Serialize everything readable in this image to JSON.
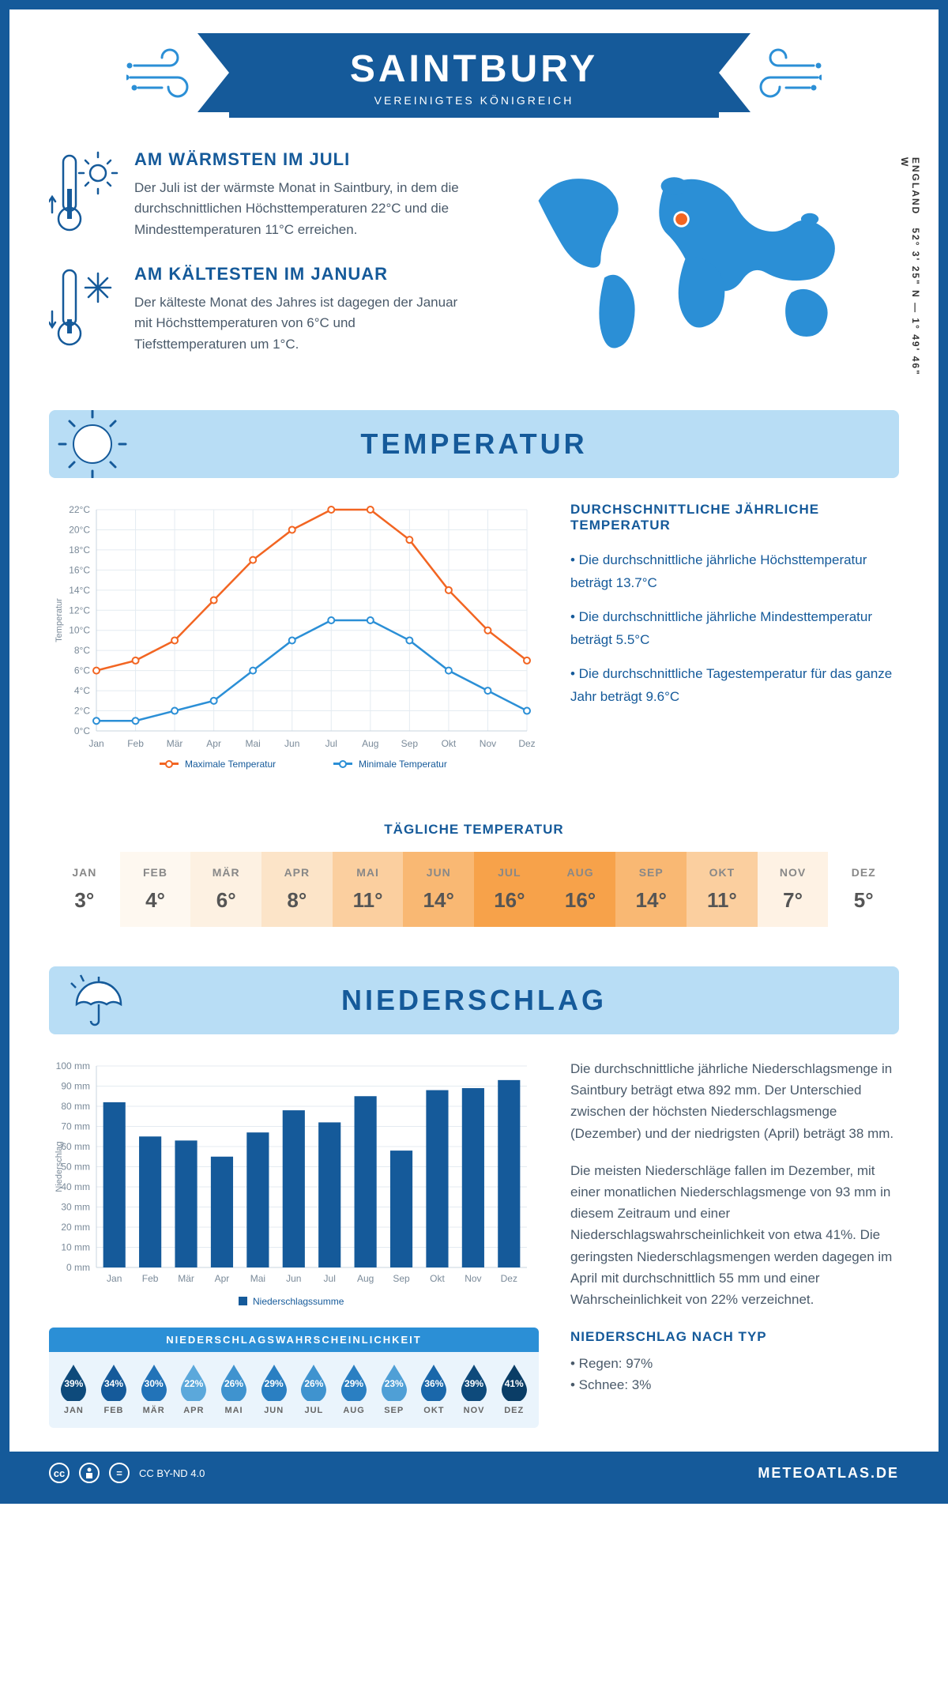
{
  "header": {
    "title": "SAINTBURY",
    "subtitle": "VEREINIGTES KÖNIGREICH"
  },
  "coords": "52° 3' 25\" N — 1° 49' 46\" W",
  "region": "ENGLAND",
  "map_marker": {
    "cx_pct": 47,
    "cy_pct": 34
  },
  "warmest": {
    "title": "AM WÄRMSTEN IM JULI",
    "text": "Der Juli ist der wärmste Monat in Saintbury, in dem die durchschnittlichen Höchsttemperaturen 22°C und die Mindesttemperaturen 11°C erreichen."
  },
  "coldest": {
    "title": "AM KÄLTESTEN IM JANUAR",
    "text": "Der kälteste Monat des Jahres ist dagegen der Januar mit Höchsttemperaturen von 6°C und Tiefsttemperaturen um 1°C."
  },
  "sections": {
    "temperature": "TEMPERATUR",
    "precipitation": "NIEDERSCHLAG"
  },
  "months": [
    "Jan",
    "Feb",
    "Mär",
    "Apr",
    "Mai",
    "Jun",
    "Jul",
    "Aug",
    "Sep",
    "Okt",
    "Nov",
    "Dez"
  ],
  "months_upper": [
    "JAN",
    "FEB",
    "MÄR",
    "APR",
    "MAI",
    "JUN",
    "JUL",
    "AUG",
    "SEP",
    "OKT",
    "NOV",
    "DEZ"
  ],
  "temp_chart": {
    "type": "line",
    "y_label": "Temperatur",
    "y_min": 0,
    "y_max": 22,
    "y_step": 2,
    "y_suffix": "°C",
    "max_series": {
      "label": "Maximale Temperatur",
      "color": "#f26522",
      "values": [
        6,
        7,
        9,
        13,
        17,
        20,
        22,
        22,
        19,
        14,
        10,
        7
      ]
    },
    "min_series": {
      "label": "Minimale Temperatur",
      "color": "#2b8fd6",
      "values": [
        1,
        1,
        2,
        3,
        6,
        9,
        11,
        11,
        9,
        6,
        4,
        2
      ]
    },
    "grid_color": "#e4ebf1",
    "axis_color": "#c8d4df",
    "marker_radius": 4
  },
  "avg_temp": {
    "title": "DURCHSCHNITTLICHE JÄHRLICHE TEMPERATUR",
    "b1": "• Die durchschnittliche jährliche Höchsttemperatur beträgt 13.7°C",
    "b2": "• Die durchschnittliche jährliche Mindesttemperatur beträgt 5.5°C",
    "b3": "• Die durchschnittliche Tagestemperatur für das ganze Jahr beträgt 9.6°C"
  },
  "daily_temp": {
    "title": "TÄGLICHE TEMPERATUR",
    "values": [
      3,
      4,
      6,
      8,
      11,
      14,
      16,
      16,
      14,
      11,
      7,
      5
    ],
    "colors": [
      "#ffffff",
      "#fef8f0",
      "#fdf1e2",
      "#fce4c8",
      "#fbcf9f",
      "#f9b873",
      "#f7a24a",
      "#f7a24a",
      "#f9b873",
      "#fbcf9f",
      "#fef2e4",
      "#ffffff"
    ]
  },
  "precip_chart": {
    "type": "bar",
    "y_label": "Niederschlag",
    "y_min": 0,
    "y_max": 100,
    "y_step": 10,
    "y_suffix": " mm",
    "values": [
      82,
      65,
      63,
      55,
      67,
      78,
      72,
      85,
      58,
      88,
      89,
      93
    ],
    "bar_color": "#155a9a",
    "legend": "Niederschlagssumme"
  },
  "precip_text": {
    "p1": "Die durchschnittliche jährliche Niederschlagsmenge in Saintbury beträgt etwa 892 mm. Der Unterschied zwischen der höchsten Niederschlagsmenge (Dezember) und der niedrigsten (April) beträgt 38 mm.",
    "p2": "Die meisten Niederschläge fallen im Dezember, mit einer monatlichen Niederschlagsmenge von 93 mm in diesem Zeitraum und einer Niederschlagswahrscheinlichkeit von etwa 41%. Die geringsten Niederschlagsmengen werden dagegen im April mit durchschnittlich 55 mm und einer Wahrscheinlichkeit von 22% verzeichnet.",
    "type_title": "NIEDERSCHLAG NACH TYP",
    "rain": "• Regen: 97%",
    "snow": "• Schnee: 3%"
  },
  "drops": {
    "title": "NIEDERSCHLAGSWAHRSCHEINLICHKEIT",
    "values": [
      39,
      34,
      30,
      22,
      26,
      29,
      26,
      29,
      23,
      36,
      39,
      41
    ],
    "colors": [
      "#0e4a7b",
      "#155a9a",
      "#2273b8",
      "#5ba8db",
      "#3f93cf",
      "#2a7fc2",
      "#3f93cf",
      "#2a7fc2",
      "#4f9fd6",
      "#1a67aa",
      "#0e4a7b",
      "#0a3d66"
    ]
  },
  "footer": {
    "license": "CC BY-ND 4.0",
    "site": "METEOATLAS.DE"
  }
}
